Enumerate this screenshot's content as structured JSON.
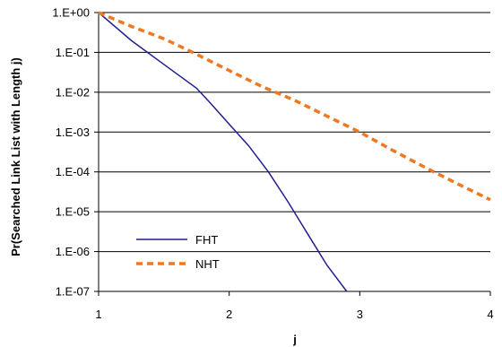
{
  "chart_data": {
    "type": "line",
    "title": "",
    "xlabel": "j",
    "ylabel": "Pr(Searched Link List with Length j)",
    "yscale": "log",
    "xlim": [
      1,
      4
    ],
    "ylim": [
      1e-07,
      1
    ],
    "xticks": [
      "1",
      "2",
      "3",
      "4"
    ],
    "yticks": [
      "1.E+00",
      "1.E-01",
      "1.E-02",
      "1.E-03",
      "1.E-04",
      "1.E-05",
      "1.E-06",
      "1.E-07"
    ],
    "grid": "horizontal",
    "legend": "bottom-left",
    "series": [
      {
        "name": "FHT",
        "color": "#1f1f8f",
        "style": "solid",
        "points": [
          [
            1,
            1
          ],
          [
            1.25,
            0.2
          ],
          [
            1.5,
            0.05
          ],
          [
            1.75,
            0.0126
          ],
          [
            1.85,
            0.0056
          ],
          [
            2.0,
            0.00158
          ],
          [
            2.15,
            0.00045
          ],
          [
            2.3,
            0.0001
          ],
          [
            2.45,
            1.78e-05
          ],
          [
            2.6,
            2.8e-06
          ],
          [
            2.75,
            4.5e-07
          ],
          [
            2.9,
            1e-07
          ]
        ]
      },
      {
        "name": "NHT",
        "color": "#f07820",
        "style": "dashed",
        "points": [
          [
            1,
            1
          ],
          [
            1.25,
            0.45
          ],
          [
            1.5,
            0.22
          ],
          [
            1.75,
            0.09
          ],
          [
            2.0,
            0.035
          ],
          [
            2.25,
            0.014
          ],
          [
            2.5,
            0.0063
          ],
          [
            2.75,
            0.0025
          ],
          [
            3.0,
            0.001
          ],
          [
            3.25,
            0.00035
          ],
          [
            3.5,
            0.00013
          ],
          [
            3.75,
            5e-05
          ],
          [
            4.0,
            2e-05
          ]
        ]
      }
    ]
  }
}
